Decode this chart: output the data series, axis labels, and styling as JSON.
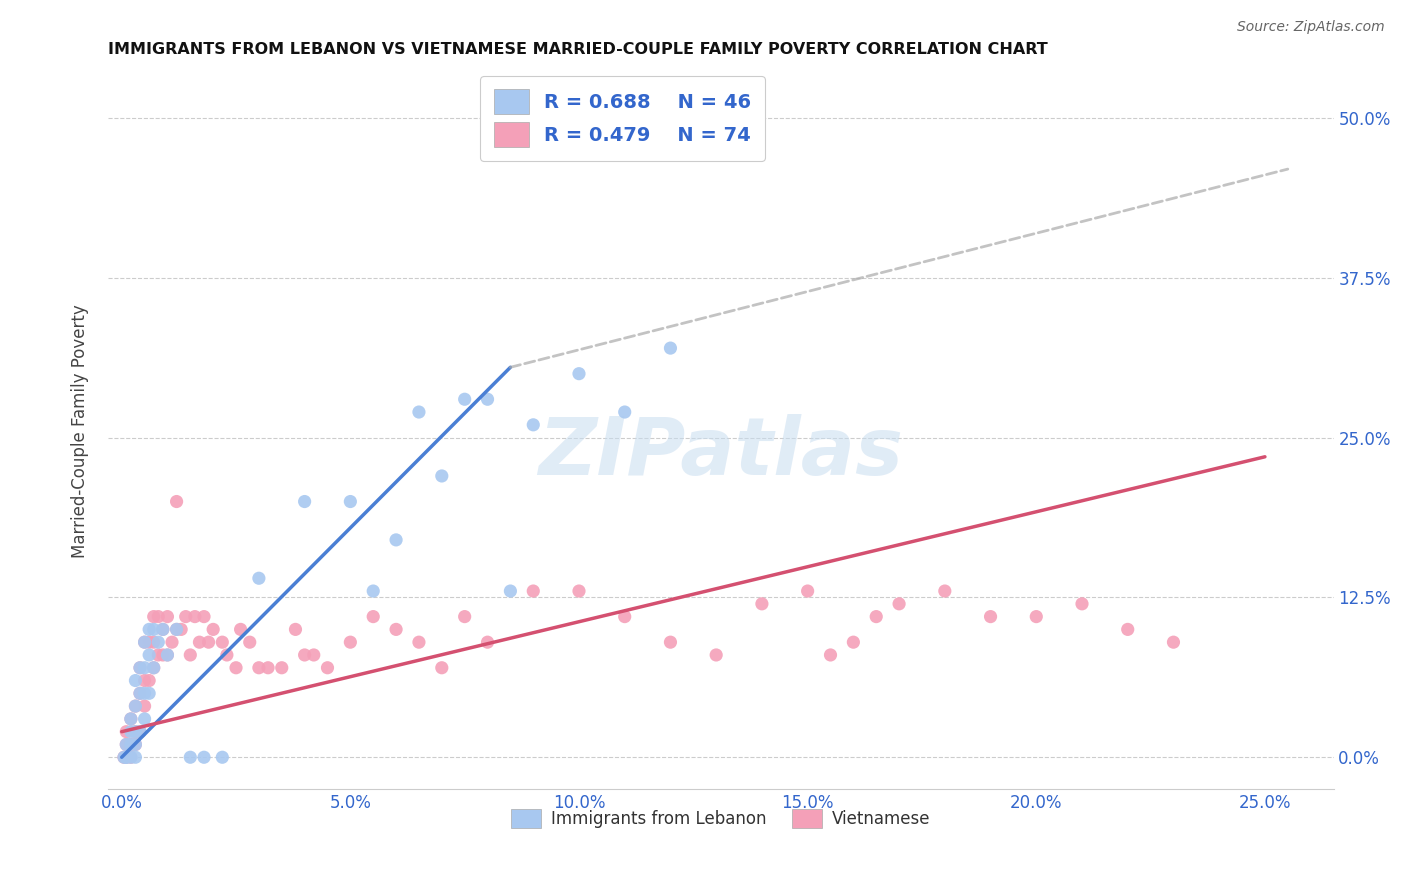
{
  "title": "IMMIGRANTS FROM LEBANON VS VIETNAMESE MARRIED-COUPLE FAMILY POVERTY CORRELATION CHART",
  "source": "Source: ZipAtlas.com",
  "xlabel_ticks": [
    "0.0%",
    "5.0%",
    "10.0%",
    "15.0%",
    "20.0%",
    "25.0%"
  ],
  "xlabel_vals": [
    0.0,
    0.05,
    0.1,
    0.15,
    0.2,
    0.25
  ],
  "ylabel_ticks": [
    "0.0%",
    "12.5%",
    "25.0%",
    "37.5%",
    "50.0%"
  ],
  "ylabel_vals": [
    0.0,
    0.125,
    0.25,
    0.375,
    0.5
  ],
  "ylabel_label": "Married-Couple Family Poverty",
  "xlim": [
    -0.003,
    0.265
  ],
  "ylim": [
    -0.025,
    0.535
  ],
  "lebanon_color": "#a8c8f0",
  "vietnamese_color": "#f4a0b8",
  "lebanon_line_color": "#4a7fd4",
  "vietnamese_line_color": "#d45070",
  "legend_lebanon_label": "Immigrants from Lebanon",
  "legend_vietnamese_label": "Vietnamese",
  "watermark": "ZIPatlas",
  "lebanon_x": [
    0.0005,
    0.001,
    0.001,
    0.001,
    0.002,
    0.002,
    0.002,
    0.002,
    0.003,
    0.003,
    0.003,
    0.003,
    0.003,
    0.004,
    0.004,
    0.004,
    0.005,
    0.005,
    0.005,
    0.005,
    0.006,
    0.006,
    0.006,
    0.007,
    0.007,
    0.008,
    0.009,
    0.01,
    0.012,
    0.015,
    0.018,
    0.022,
    0.03,
    0.04,
    0.05,
    0.055,
    0.06,
    0.065,
    0.07,
    0.075,
    0.08,
    0.085,
    0.09,
    0.1,
    0.11,
    0.12
  ],
  "lebanon_y": [
    0.0,
    0.0,
    0.0,
    0.01,
    0.0,
    0.01,
    0.02,
    0.03,
    0.0,
    0.01,
    0.02,
    0.04,
    0.06,
    0.02,
    0.05,
    0.07,
    0.03,
    0.05,
    0.07,
    0.09,
    0.05,
    0.08,
    0.1,
    0.07,
    0.1,
    0.09,
    0.1,
    0.08,
    0.1,
    0.0,
    0.0,
    0.0,
    0.14,
    0.2,
    0.2,
    0.13,
    0.17,
    0.27,
    0.22,
    0.28,
    0.28,
    0.13,
    0.26,
    0.3,
    0.27,
    0.32
  ],
  "vietnamese_x": [
    0.0005,
    0.001,
    0.001,
    0.001,
    0.002,
    0.002,
    0.002,
    0.003,
    0.003,
    0.003,
    0.004,
    0.004,
    0.004,
    0.005,
    0.005,
    0.005,
    0.006,
    0.006,
    0.007,
    0.007,
    0.007,
    0.008,
    0.008,
    0.009,
    0.009,
    0.01,
    0.01,
    0.011,
    0.012,
    0.012,
    0.013,
    0.014,
    0.015,
    0.016,
    0.017,
    0.018,
    0.019,
    0.02,
    0.022,
    0.023,
    0.025,
    0.026,
    0.028,
    0.03,
    0.032,
    0.035,
    0.038,
    0.04,
    0.042,
    0.045,
    0.05,
    0.055,
    0.06,
    0.065,
    0.07,
    0.075,
    0.08,
    0.09,
    0.1,
    0.11,
    0.12,
    0.13,
    0.14,
    0.15,
    0.155,
    0.16,
    0.165,
    0.17,
    0.18,
    0.19,
    0.2,
    0.21,
    0.22,
    0.23
  ],
  "vietnamese_y": [
    0.0,
    0.0,
    0.01,
    0.02,
    0.0,
    0.01,
    0.03,
    0.01,
    0.02,
    0.04,
    0.02,
    0.05,
    0.07,
    0.04,
    0.06,
    0.09,
    0.06,
    0.09,
    0.07,
    0.09,
    0.11,
    0.08,
    0.11,
    0.08,
    0.1,
    0.08,
    0.11,
    0.09,
    0.1,
    0.2,
    0.1,
    0.11,
    0.08,
    0.11,
    0.09,
    0.11,
    0.09,
    0.1,
    0.09,
    0.08,
    0.07,
    0.1,
    0.09,
    0.07,
    0.07,
    0.07,
    0.1,
    0.08,
    0.08,
    0.07,
    0.09,
    0.11,
    0.1,
    0.09,
    0.07,
    0.11,
    0.09,
    0.13,
    0.13,
    0.11,
    0.09,
    0.08,
    0.12,
    0.13,
    0.08,
    0.09,
    0.11,
    0.12,
    0.13,
    0.11,
    0.11,
    0.12,
    0.1,
    0.09
  ],
  "lb_line_x0": 0.0,
  "lb_line_y0": 0.0,
  "lb_line_x1": 0.085,
  "lb_line_y1": 0.305,
  "lb_line_ext_x1": 0.255,
  "lb_line_ext_y1": 0.46,
  "vn_line_x0": 0.0,
  "vn_line_y0": 0.02,
  "vn_line_x1": 0.25,
  "vn_line_y1": 0.235
}
